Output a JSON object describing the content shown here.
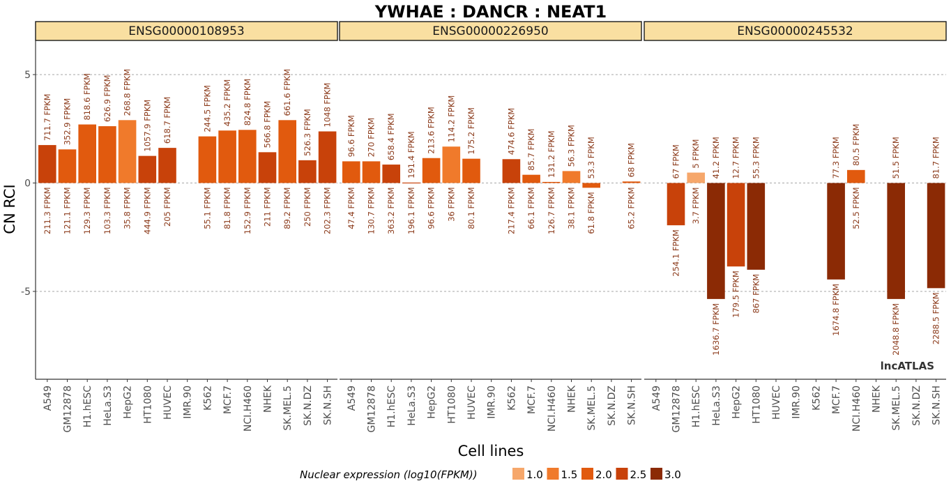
{
  "chart_data": {
    "type": "bar",
    "title": "YWHAE : DANCR : NEAT1",
    "xlabel": "Cell lines",
    "ylabel": "CN RCI",
    "ylim": [
      -9,
      6.6
    ],
    "yticks": [
      -5,
      0,
      5
    ],
    "grid": "horizontal dashed",
    "watermark": "lncATLAS",
    "categories": [
      "A549",
      "GM12878",
      "H1.hESC",
      "HeLa.S3",
      "HepG2",
      "HT1080",
      "HUVEC",
      "IMR.90",
      "K562",
      "MCF.7",
      "NCI.H460",
      "NHEK",
      "SK.MEL.5",
      "SK.N.DZ",
      "SK.N.SH"
    ],
    "color_scale": [
      "#F6A76B",
      "#F07A2B",
      "#E15A0E",
      "#C8420A",
      "#8B2A05"
    ],
    "legend": {
      "title": "Nuclear expression (log10(FPKM))",
      "position": "bottom",
      "items": [
        "1.0",
        "1.5",
        "2.0",
        "2.5",
        "3.0"
      ]
    },
    "panels": [
      {
        "name": "ENSG00000108953",
        "values": [
          1.75,
          1.55,
          2.7,
          2.62,
          2.9,
          1.25,
          1.62,
          null,
          2.15,
          2.42,
          2.45,
          1.42,
          2.9,
          1.05,
          2.38
        ],
        "log10_nuclear": [
          2.33,
          2.08,
          2.11,
          2.01,
          1.55,
          2.65,
          2.31,
          null,
          1.74,
          1.91,
          2.18,
          2.32,
          1.95,
          2.4,
          2.31
        ],
        "top_labels": [
          "711.7 FPKM",
          "352.9 FPKM",
          "818.6 FPKM",
          "626.9 FPKM",
          "268.8 FPKM",
          "1057.9 FPKM",
          "618.7 FPKM",
          "",
          "244.5 FPKM",
          "435.2 FPKM",
          "824.8 FPKM",
          "566.8 FPKM",
          "661.6 FPKM",
          "526.3 FPKM",
          "1048 FPKM"
        ],
        "bottom_labels": [
          "211.3 FPKM",
          "121.1 FPKM",
          "129.3 FPKM",
          "103.3 FPKM",
          "35.8 FPKM",
          "444.9 FPKM",
          "205 FPKM",
          "",
          "55.1 FPKM",
          "81.8 FPKM",
          "152.9 FPKM",
          "211 FPKM",
          "89.2 FPKM",
          "250 FPKM",
          "202.3 FPKM"
        ]
      },
      {
        "name": "ENSG00000226950",
        "values": [
          1.0,
          1.0,
          0.85,
          0.02,
          1.15,
          1.68,
          1.12,
          null,
          1.1,
          0.38,
          0.05,
          0.55,
          -0.22,
          null,
          0.07
        ],
        "log10_nuclear": [
          1.68,
          2.12,
          2.56,
          2.29,
          1.98,
          1.56,
          1.9,
          null,
          2.34,
          1.82,
          2.1,
          1.58,
          1.79,
          null,
          1.81
        ],
        "top_labels": [
          "96.6 FPKM",
          "270 FPKM",
          "658.4 FPKM",
          "191.4 FPKM",
          "213.6 FPKM",
          "114.2 FPKM",
          "175.2 FPKM",
          "",
          "474.6 FPKM",
          "85.7 FPKM",
          "131.2 FPKM",
          "56.3 FPKM",
          "53.3 FPKM",
          "",
          "68 FPKM"
        ],
        "bottom_labels": [
          "47.4 FPKM",
          "130.7 FPKM",
          "363.2 FPKM",
          "196.1 FPKM",
          "96.6 FPKM",
          "36 FPKM",
          "80.1 FPKM",
          "",
          "217.4 FPKM",
          "66.1 FPKM",
          "126.7 FPKM",
          "38.1 FPKM",
          "61.8 FPKM",
          "",
          "65.2 FPKM"
        ]
      },
      {
        "name": "ENSG00000245532",
        "values": [
          null,
          -1.95,
          0.48,
          -5.35,
          -3.85,
          -4.0,
          null,
          null,
          null,
          -4.45,
          0.6,
          null,
          -5.35,
          null,
          -4.85
        ],
        "log10_nuclear": [
          null,
          2.41,
          0.57,
          3.21,
          2.25,
          2.94,
          null,
          null,
          null,
          3.22,
          1.72,
          null,
          3.31,
          null,
          3.36
        ],
        "top_labels": [
          "",
          "67 FPKM",
          "5 FPKM",
          "41.2 FPKM",
          "12.7 FPKM",
          "55.3 FPKM",
          "",
          "",
          "",
          "77.3 FPKM",
          "80.5 FPKM",
          "",
          "51.5 FPKM",
          "",
          "81.7 FPKM"
        ],
        "bottom_labels": [
          "",
          "254.1 FPKM",
          "3.7 FPKM",
          "1636.7 FPKM",
          "179.5 FPKM",
          "867 FPKM",
          "",
          "",
          "",
          "1674.8 FPKM",
          "52.5 FPKM",
          "",
          "2048.8 FPKM",
          "",
          "2288.5 FPKM"
        ]
      }
    ]
  }
}
